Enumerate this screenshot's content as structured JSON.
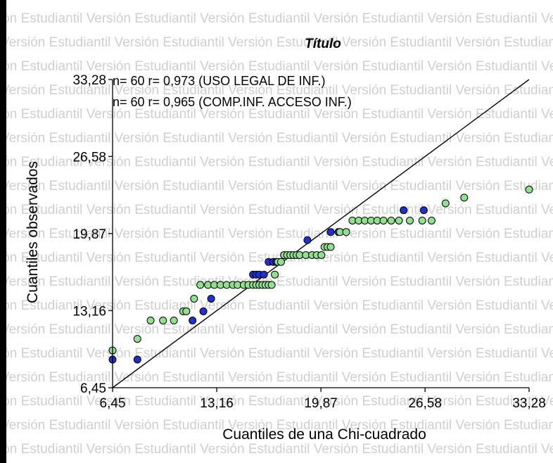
{
  "watermark": "Versión Estudiantil",
  "chart_data": {
    "type": "scatter",
    "title": "Título",
    "xlabel": "Cuantiles de una Chi-cuadrado",
    "ylabel": "Cuantiles observados",
    "xlim": [
      6.45,
      33.28
    ],
    "ylim": [
      6.45,
      33.28
    ],
    "x_ticks": [
      "6,45",
      "13,16",
      "19,87",
      "26,58",
      "33,28"
    ],
    "y_ticks": [
      "6,45",
      "13,16",
      "19,87",
      "26,58",
      "33,28"
    ],
    "reference_line": {
      "from": [
        6.45,
        6.45
      ],
      "to": [
        33.28,
        33.28
      ]
    },
    "annotations": [
      "n= 60 r= 0,973 (USO LEGAL DE INF.)",
      "n= 60 r= 0,965 (COMP.INF. ACCESO INF.)"
    ],
    "series": [
      {
        "name": "USO LEGAL DE INF.",
        "color": "#1f2fd0",
        "x": [
          6.45,
          8.05,
          11.6,
          12.3,
          12.8,
          15.5,
          15.7,
          15.9,
          16.2,
          16.5,
          16.8,
          17.0,
          19.0,
          20.5,
          21.0,
          25.2,
          26.5
        ],
        "y": [
          8.9,
          8.9,
          12.3,
          13.1,
          14.2,
          16.3,
          16.3,
          16.3,
          16.3,
          17.4,
          17.4,
          17.4,
          19.3,
          20.0,
          20.0,
          21.9,
          21.9
        ]
      },
      {
        "name": "COMP.INF. ACCESO INF.",
        "color": "#8fe08f",
        "x": [
          6.45,
          8.05,
          8.9,
          9.7,
          10.4,
          11.0,
          11.2,
          11.7,
          12.1,
          12.6,
          13.0,
          13.4,
          13.8,
          14.2,
          14.5,
          14.9,
          15.2,
          15.5,
          15.7,
          15.9,
          16.1,
          16.3,
          16.5,
          16.7,
          16.9,
          17.1,
          17.3,
          17.5,
          17.7,
          17.9,
          18.1,
          18.3,
          18.5,
          18.9,
          19.3,
          19.6,
          19.9,
          20.1,
          20.3,
          20.5,
          21.1,
          21.5,
          21.9,
          22.3,
          22.7,
          23.1,
          23.5,
          23.9,
          24.4,
          24.9,
          25.6,
          26.4,
          27.0,
          27.9,
          29.1,
          33.28
        ],
        "y": [
          9.7,
          10.7,
          12.3,
          12.3,
          12.3,
          13.1,
          13.1,
          14.2,
          15.4,
          15.4,
          15.4,
          15.4,
          15.4,
          15.4,
          15.4,
          15.4,
          15.4,
          15.4,
          15.4,
          15.4,
          15.4,
          15.4,
          15.4,
          15.4,
          16.3,
          17.4,
          17.4,
          18.0,
          18.0,
          18.0,
          18.0,
          18.0,
          18.0,
          18.0,
          18.0,
          18.0,
          18.0,
          18.7,
          18.7,
          18.7,
          20.0,
          20.0,
          21.0,
          21.0,
          21.0,
          21.0,
          21.0,
          21.0,
          21.0,
          21.0,
          21.0,
          21.0,
          21.0,
          22.5,
          23.0,
          23.7
        ]
      }
    ]
  }
}
